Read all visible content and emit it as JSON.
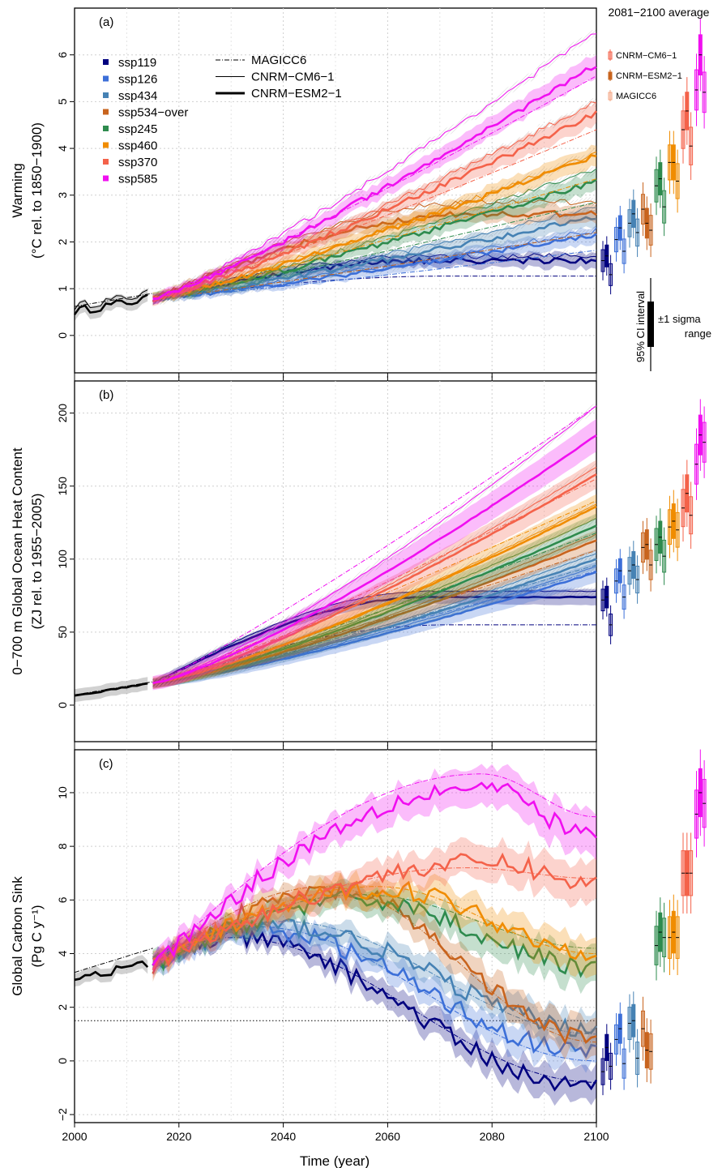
{
  "chart_data": {
    "type": "line",
    "colors": {
      "ssp119": "#00007f",
      "ssp126": "#3c6fd8",
      "ssp434": "#4682b4",
      "ssp534-over": "#c8641e",
      "ssp245": "#2e8b4e",
      "ssp460": "#f08c00",
      "ssp370": "#f4624a",
      "ssp585": "#f00ff0",
      "historical": "#000000"
    },
    "legend_scenarios": [
      {
        "key": "ssp119",
        "label": "ssp119"
      },
      {
        "key": "ssp126",
        "label": "ssp126"
      },
      {
        "key": "ssp434",
        "label": "ssp434"
      },
      {
        "key": "ssp534-over",
        "label": "ssp534−over"
      },
      {
        "key": "ssp245",
        "label": "ssp245"
      },
      {
        "key": "ssp460",
        "label": "ssp460"
      },
      {
        "key": "ssp370",
        "label": "ssp370"
      },
      {
        "key": "ssp585",
        "label": "ssp585"
      }
    ],
    "legend_models": [
      {
        "key": "magicc",
        "label": "MAGICC6",
        "style": "dash-dot"
      },
      {
        "key": "cm6",
        "label": "CNRM−CM6−1",
        "style": "thin"
      },
      {
        "key": "esm2",
        "label": "CNRM−ESM2−1",
        "style": "thick"
      }
    ],
    "xlabel": "Time (year)",
    "xlim": [
      2000,
      2100
    ],
    "xticks": [
      2000,
      2020,
      2040,
      2060,
      2080,
      2100
    ],
    "side_title": "2081−2100 average",
    "side_legend": [
      "CNRM−CM6−1",
      "CNRM−ESM2−1",
      "MAGICC6"
    ],
    "ci_label": "95% CI interval",
    "sigma_label_1": "±1 sigma",
    "sigma_label_2": "range",
    "panels": [
      {
        "id": "a",
        "label": "(a)",
        "ylabel_1": "Warming",
        "ylabel_2": "(°C rel. to 1850−1900)",
        "ylim": [
          -0.8,
          7.0
        ],
        "yticks": [
          0,
          1,
          2,
          3,
          4,
          5,
          6
        ],
        "hist": {
          "start": 0.52,
          "end": 0.78
        },
        "hist_magicc": {
          "start": 0.62,
          "end": 0.9
        },
        "scenarios": {
          "ssp119": {
            "esm2": 1.6,
            "cm6": 1.7,
            "magicc": 1.27,
            "band": 0.12
          },
          "ssp126": {
            "esm2": 2.15,
            "cm6": 2.25,
            "magicc": 1.82,
            "band": 0.13
          },
          "ssp434": {
            "esm2": 2.55,
            "cm6": 2.75,
            "magicc": 2.2,
            "band": 0.14
          },
          "ssp534-over": {
            "esm2": 2.6,
            "cm6": 2.85,
            "magicc": 2.2,
            "band": 0.14
          },
          "ssp245": {
            "esm2": 3.3,
            "cm6": 3.55,
            "magicc": 2.85,
            "band": 0.15
          },
          "ssp460": {
            "esm2": 3.85,
            "cm6": 3.9,
            "magicc": 3.35,
            "band": 0.16
          },
          "ssp370": {
            "esm2": 4.75,
            "cm6": 5.0,
            "magicc": 4.4,
            "band": 0.17
          },
          "ssp585": {
            "esm2": 5.8,
            "cm6": 6.5,
            "magicc": 5.55,
            "band": 0.18
          }
        },
        "side": {
          "ssp119": [
            1.6,
            1.7,
            1.3
          ],
          "ssp126": [
            2.05,
            2.3,
            1.8
          ],
          "ssp434": [
            2.4,
            2.6,
            2.2
          ],
          "ssp534-over": [
            2.7,
            2.4,
            2.25
          ],
          "ssp245": [
            3.2,
            3.35,
            2.75
          ],
          "ssp460": [
            3.7,
            3.7,
            3.3
          ],
          "ssp370": [
            4.4,
            4.8,
            4.05
          ],
          "ssp585": [
            5.25,
            6.0,
            5.2
          ]
        }
      },
      {
        "id": "b",
        "label": "(b)",
        "ylabel_1": "0−700 m Global Ocean Heat Content",
        "ylabel_2": "(ZJ rel. to 1955−2005)",
        "ylim": [
          -25,
          222
        ],
        "yticks": [
          0,
          50,
          100,
          150,
          200
        ],
        "hist": {
          "start": 6,
          "end": 15
        },
        "hist_magicc": {
          "start": 7,
          "end": 16
        },
        "scenarios": {
          "ssp119": {
            "esm2": 74,
            "cm6": 78,
            "magicc": 55,
            "band": 4
          },
          "ssp126": {
            "esm2": 91,
            "cm6": 95,
            "magicc": 92,
            "band": 5
          },
          "ssp434": {
            "esm2": 100,
            "cm6": 104,
            "magicc": 96,
            "band": 5
          },
          "ssp534-over": {
            "esm2": 113,
            "cm6": 117,
            "magicc": 106,
            "band": 5
          },
          "ssp245": {
            "esm2": 123,
            "cm6": 128,
            "magicc": 118,
            "band": 6
          },
          "ssp460": {
            "esm2": 136,
            "cm6": 138,
            "magicc": 140,
            "band": 6
          },
          "ssp370": {
            "esm2": 158,
            "cm6": 163,
            "magicc": 155,
            "band": 7
          },
          "ssp585": {
            "esm2": 185,
            "cm6": 205,
            "magicc": 205,
            "band": 8
          }
        },
        "side": {
          "ssp119": [
            72,
            74,
            55
          ],
          "ssp126": [
            85,
            92,
            74
          ],
          "ssp434": [
            92,
            96,
            86
          ],
          "ssp534-over": [
            108,
            110,
            96
          ],
          "ssp245": [
            110,
            115,
            102
          ],
          "ssp460": [
            122,
            126,
            120
          ],
          "ssp370": [
            135,
            145,
            130
          ],
          "ssp585": [
            165,
            185,
            180
          ]
        }
      },
      {
        "id": "c",
        "label": "(c)",
        "ylabel_1": "Global  Carbon Sink",
        "ylabel_2": "(Pg C y⁻¹)",
        "ylim": [
          -2.3,
          11.6
        ],
        "yticks": [
          -2,
          0,
          2,
          4,
          6,
          8,
          10
        ],
        "ytick_labels": [
          "−2",
          "0",
          "2",
          "4",
          "6",
          "8",
          "10"
        ],
        "hline": 1.5,
        "hist": {
          "start": 3.1,
          "end": 3.6
        },
        "hist_magicc": {
          "start": 3.3,
          "end": 4.2
        },
        "scenarios": {
          "ssp119": {
            "esm2": -1.0,
            "peak": 4.6,
            "peakYear": 2030,
            "magicc": -0.8,
            "magPeak": 4.6,
            "magPeakYear": 2030,
            "band": 0.45
          },
          "ssp126": {
            "esm2": 0.3,
            "peak": 4.9,
            "peakYear": 2035,
            "magicc": 0.0,
            "magPeak": 5.0,
            "magPeakYear": 2035,
            "band": 0.45
          },
          "ssp434": {
            "esm2": 1.2,
            "peak": 5.0,
            "peakYear": 2040,
            "magicc": 1.0,
            "magPeak": 5.2,
            "magPeakYear": 2040,
            "band": 0.45
          },
          "ssp534-over": {
            "esm2": 0.8,
            "peak": 6.3,
            "peakYear": 2050,
            "magicc": 0.7,
            "magPeak": 6.5,
            "magPeakYear": 2048,
            "band": 0.5
          },
          "ssp245": {
            "esm2": 3.5,
            "peak": 6.0,
            "peakYear": 2055,
            "magicc": 4.2,
            "magPeak": 6.2,
            "magPeakYear": 2055,
            "band": 0.5
          },
          "ssp460": {
            "esm2": 4.1,
            "peak": 6.4,
            "peakYear": 2060,
            "magicc": 4.0,
            "magPeak": 6.5,
            "magPeakYear": 2058,
            "band": 0.5
          },
          "ssp370": {
            "esm2": 6.6,
            "peak": 7.4,
            "peakYear": 2080,
            "magicc": 6.8,
            "magPeak": 7.2,
            "magPeakYear": 2075,
            "band": 0.55
          },
          "ssp585": {
            "esm2": 8.4,
            "peak": 10.2,
            "peakYear": 2078,
            "magicc": 9.1,
            "magPeak": 10.7,
            "magPeakYear": 2078,
            "band": 0.6
          }
        },
        "side": {
          "ssp119": [
            -0.4,
            0.5,
            -0.2
          ],
          "ssp126": [
            0.8,
            1.2,
            -0.1
          ],
          "ssp434": [
            1.4,
            1.5,
            0.1
          ],
          "ssp534-over": [
            1.2,
            0.4,
            0.35
          ],
          "ssp245": [
            4.3,
            4.8,
            4.6
          ],
          "ssp460": [
            4.6,
            4.8,
            4.6
          ],
          "ssp370": [
            7.0,
            7.0,
            7.0
          ],
          "ssp585": [
            9.2,
            10.0,
            9.6
          ]
        }
      }
    ]
  }
}
